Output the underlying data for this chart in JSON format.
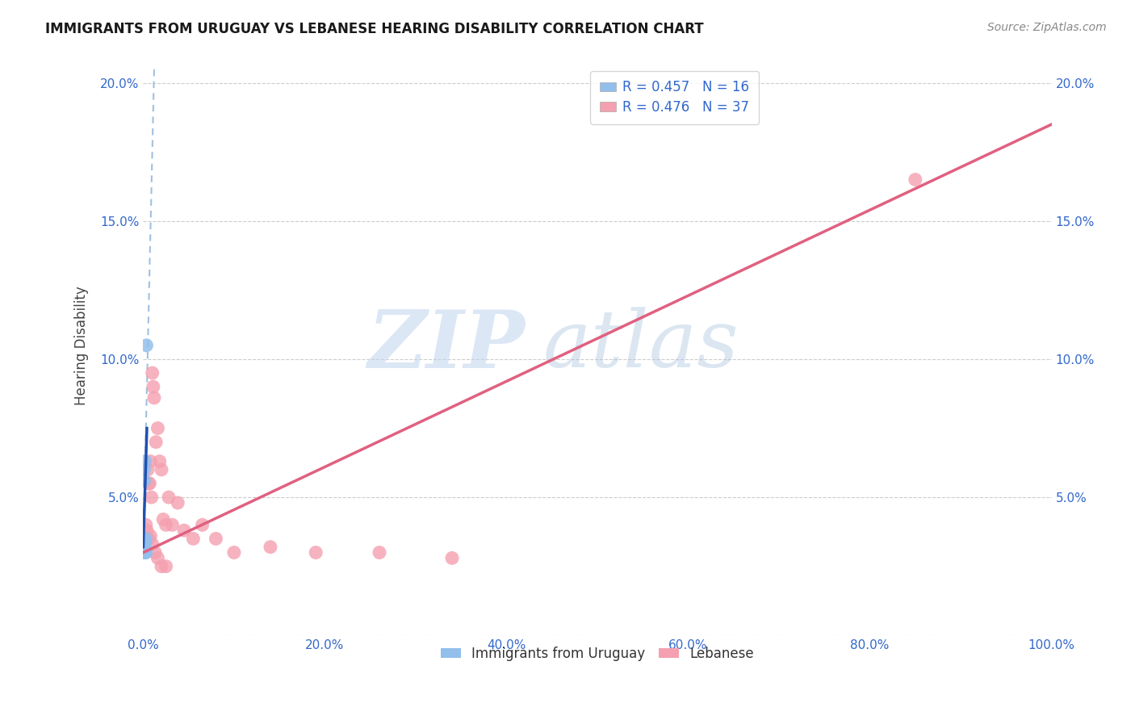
{
  "title": "IMMIGRANTS FROM URUGUAY VS LEBANESE HEARING DISABILITY CORRELATION CHART",
  "source": "Source: ZipAtlas.com",
  "ylabel": "Hearing Disability",
  "r_uruguay": 0.457,
  "n_uruguay": 16,
  "r_lebanese": 0.476,
  "n_lebanese": 37,
  "xlim": [
    0,
    1.0
  ],
  "ylim": [
    0,
    0.21
  ],
  "xticks": [
    0.0,
    0.2,
    0.4,
    0.6,
    0.8,
    1.0
  ],
  "yticks": [
    0.0,
    0.05,
    0.1,
    0.15,
    0.2
  ],
  "xtick_labels": [
    "0.0%",
    "20.0%",
    "40.0%",
    "60.0%",
    "80.0%",
    "100.0%"
  ],
  "ytick_labels_left": [
    "",
    "5.0%",
    "10.0%",
    "15.0%",
    "20.0%"
  ],
  "ytick_labels_right": [
    "",
    "5.0%",
    "10.0%",
    "15.0%",
    "20.0%"
  ],
  "color_uruguay": "#92bfec",
  "color_lebanese": "#f4a0b0",
  "trend_color_uruguay": "#2050b0",
  "trend_color_lebanese": "#e06080",
  "dashed_color": "#a0c0e0",
  "legend_label_uruguay": "Immigrants from Uruguay",
  "legend_label_lebanese": "Lebanese",
  "watermark_zip": "ZIP",
  "watermark_atlas": "atlas",
  "uruguay_x": [
    0.0003,
    0.0004,
    0.0005,
    0.0006,
    0.0007,
    0.0008,
    0.0009,
    0.001,
    0.0012,
    0.0015,
    0.0018,
    0.002,
    0.002,
    0.0025,
    0.003,
    0.0035
  ],
  "uruguay_y": [
    0.031,
    0.032,
    0.03,
    0.033,
    0.03,
    0.032,
    0.06,
    0.056,
    0.031,
    0.033,
    0.03,
    0.034,
    0.063,
    0.035,
    0.03,
    0.105
  ],
  "lebanese_x": [
    0.002,
    0.003,
    0.004,
    0.005,
    0.006,
    0.007,
    0.008,
    0.009,
    0.01,
    0.011,
    0.012,
    0.014,
    0.016,
    0.018,
    0.02,
    0.022,
    0.025,
    0.028,
    0.032,
    0.038,
    0.045,
    0.055,
    0.065,
    0.08,
    0.1,
    0.14,
    0.19,
    0.26,
    0.34,
    0.85,
    0.006,
    0.008,
    0.01,
    0.013,
    0.016,
    0.02,
    0.025
  ],
  "lebanese_y": [
    0.035,
    0.04,
    0.038,
    0.06,
    0.055,
    0.055,
    0.063,
    0.05,
    0.095,
    0.09,
    0.086,
    0.07,
    0.075,
    0.063,
    0.06,
    0.042,
    0.04,
    0.05,
    0.04,
    0.048,
    0.038,
    0.035,
    0.04,
    0.035,
    0.03,
    0.032,
    0.03,
    0.03,
    0.028,
    0.165,
    0.035,
    0.036,
    0.033,
    0.03,
    0.028,
    0.025,
    0.025
  ],
  "lebanese_trend_x": [
    0.0,
    1.0
  ],
  "lebanese_trend_y": [
    0.03,
    0.185
  ],
  "uruguay_trend_x0": 0.0,
  "uruguay_trend_x1": 0.004,
  "uruguay_trend_y0": 0.032,
  "uruguay_trend_y1": 0.075,
  "dashed_trend_x0": 0.0,
  "dashed_trend_x1": 0.012,
  "dashed_trend_y0": 0.032,
  "dashed_trend_y1": 0.205
}
